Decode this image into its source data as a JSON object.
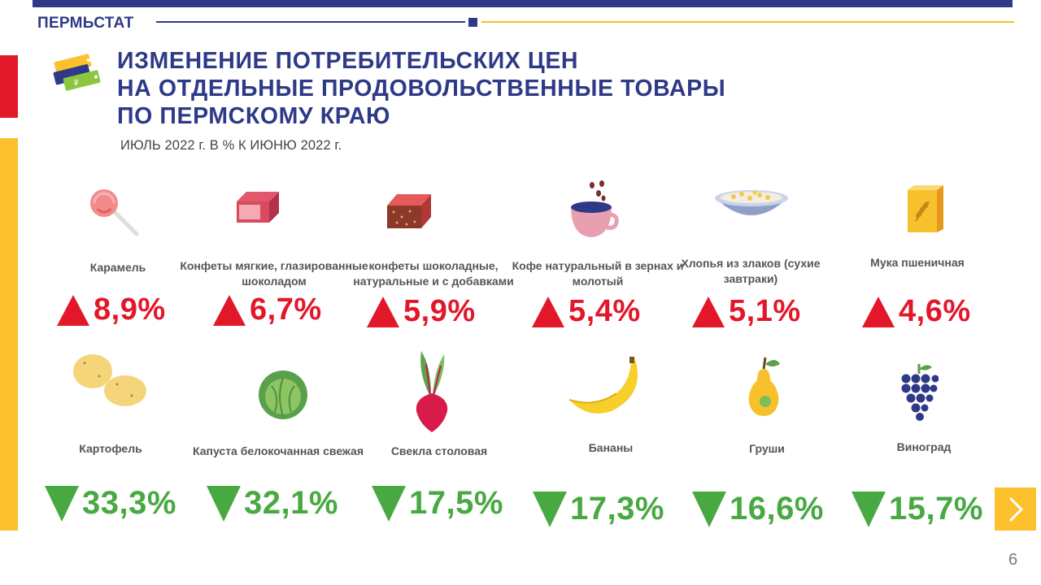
{
  "header": {
    "brand": "ПЕРМЬСТАТ",
    "title_lines": [
      "ИЗМЕНЕНИЕ ПОТРЕБИТЕЛЬСКИХ ЦЕН",
      "НА ОТДЕЛЬНЫЕ ПРОДОВОЛЬСТВЕННЫЕ ТОВАРЫ",
      "ПО ПЕРМСКОМУ КРАЮ"
    ],
    "subtitle": "ИЮЛЬ 2022 г. В % К ИЮНЮ 2022 г."
  },
  "increases": [
    {
      "icon": "lollipop-icon",
      "label": "Карамель",
      "value": "8,9%"
    },
    {
      "icon": "soft-candy-icon",
      "label": "Конфеты мягкие, глазированные шоколадом",
      "value": "6,7%"
    },
    {
      "icon": "chocolate-candy-icon",
      "label": "конфеты шоколадные, натуральные и с добавками",
      "value": "5,9%"
    },
    {
      "icon": "coffee-cup-icon",
      "label": "Кофе натуральный в зернах и молотый",
      "value": "5,4%"
    },
    {
      "icon": "cereal-bowl-icon",
      "label": "Хлопья из злаков (сухие завтраки)",
      "value": "5,1%"
    },
    {
      "icon": "flour-bag-icon",
      "label": "Мука пшеничная",
      "value": "4,6%"
    }
  ],
  "decreases": [
    {
      "icon": "potato-icon",
      "label": "Картофель",
      "value": "33,3%"
    },
    {
      "icon": "cabbage-icon",
      "label": "Капуста белокочанная свежая",
      "value": "32,1%"
    },
    {
      "icon": "beet-icon",
      "label": "Свекла столовая",
      "value": "17,5%"
    },
    {
      "icon": "banana-icon",
      "label": "Бананы",
      "value": "17,3%"
    },
    {
      "icon": "pear-icon",
      "label": "Груши",
      "value": "16,6%"
    },
    {
      "icon": "grapes-icon",
      "label": "Виноград",
      "value": "15,7%"
    }
  ],
  "navigation": {
    "next_icon": "chevron-right-icon",
    "page_number": "6"
  },
  "colors": {
    "brand_blue": "#2e3a87",
    "increase_red": "#e2172a",
    "decrease_green": "#48a942",
    "accent_yellow": "#fcc12d"
  }
}
